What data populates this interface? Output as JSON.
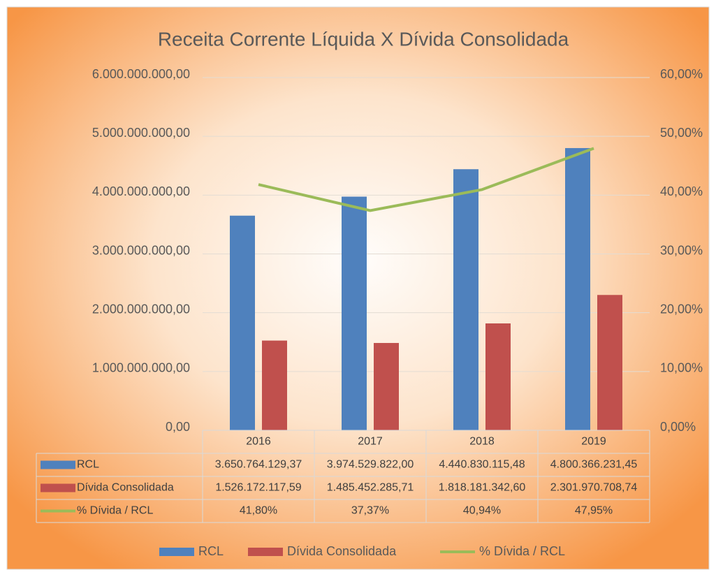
{
  "chart_data": {
    "type": "bar",
    "title": "Receita Corrente Líquida X Dívida Consolidada",
    "categories": [
      "2016",
      "2017",
      "2018",
      "2019"
    ],
    "series": [
      {
        "name": "RCL",
        "color": "#4f81bd",
        "values": [
          3650764129.37,
          3974529822.0,
          4440830115.48,
          4800366231.45
        ],
        "value_labels": [
          "3.650.764.129,37",
          "3.974.529.822,00",
          "4.440.830.115,48",
          "4.800.366.231,45"
        ]
      },
      {
        "name": "Dívida Consolidada",
        "color": "#c0504d",
        "values": [
          1526172117.59,
          1485452285.71,
          1818181342.6,
          2301970708.74
        ],
        "value_labels": [
          "1.526.172.117,59",
          "1.485.452.285,71",
          "1.818.181.342,60",
          "2.301.970.708,74"
        ]
      },
      {
        "name": "% Dívida / RCL",
        "color": "#9bbb59",
        "type": "line",
        "axis": "y2",
        "values": [
          41.8,
          37.37,
          40.94,
          47.95
        ],
        "value_labels": [
          "41,80%",
          "37,37%",
          "40,94%",
          "47,95%"
        ]
      }
    ],
    "ylim": [
      0,
      6000000000
    ],
    "yticks": [
      {
        "value": 0,
        "label": "0,00"
      },
      {
        "value": 1000000000,
        "label": "1.000.000.000,00"
      },
      {
        "value": 2000000000,
        "label": "2.000.000.000,00"
      },
      {
        "value": 3000000000,
        "label": "3.000.000.000,00"
      },
      {
        "value": 4000000000,
        "label": "4.000.000.000,00"
      },
      {
        "value": 5000000000,
        "label": "5.000.000.000,00"
      },
      {
        "value": 6000000000,
        "label": "6.000.000.000,00"
      }
    ],
    "y2lim": [
      0,
      60
    ],
    "y2ticks": [
      {
        "value": 0,
        "label": "0,00%"
      },
      {
        "value": 10,
        "label": "10,00%"
      },
      {
        "value": 20,
        "label": "20,00%"
      },
      {
        "value": 30,
        "label": "30,00%"
      },
      {
        "value": 40,
        "label": "40,00%"
      },
      {
        "value": 50,
        "label": "50,00%"
      },
      {
        "value": 60,
        "label": "60,00%"
      }
    ],
    "grid": true,
    "legend": "bottom"
  }
}
